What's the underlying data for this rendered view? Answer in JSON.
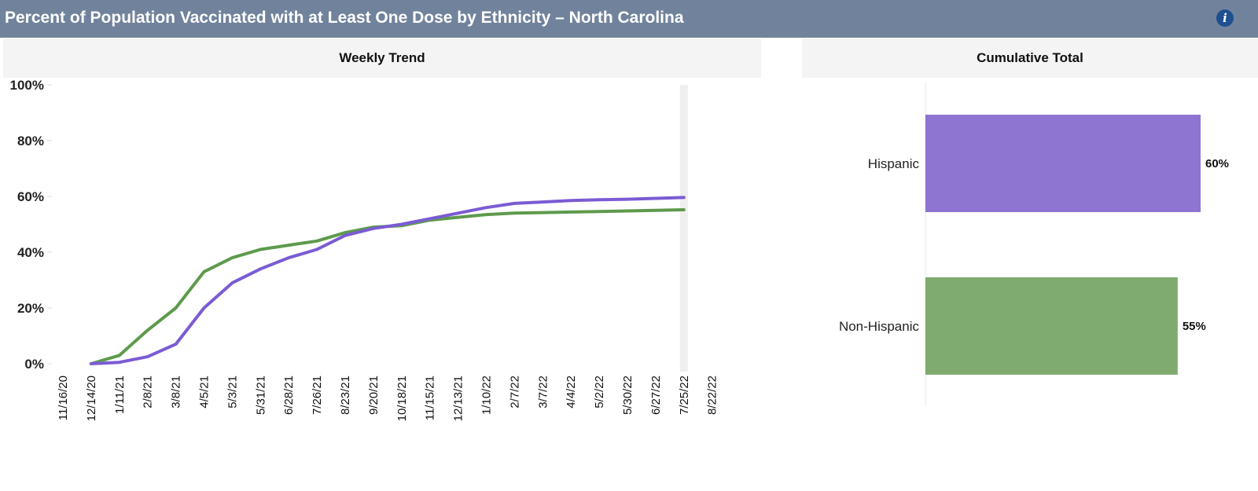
{
  "header": {
    "title": "Percent of Population Vaccinated with at Least One Dose by Ethnicity – North Carolina",
    "info_icon": "info-icon"
  },
  "panels": {
    "weekly_title": "Weekly Trend",
    "cumulative_title": "Cumulative Total"
  },
  "colors": {
    "hispanic": "#7b5bd4",
    "non_hispanic": "#5e9a4c",
    "hispanic_bar": "#8e75d1",
    "non_hispanic_bar": "#7fab6f",
    "header_bg": "#71839c"
  },
  "chart_data": [
    {
      "type": "line",
      "title": "Weekly Trend",
      "xlabel": "",
      "ylabel": "",
      "ylim": [
        0,
        100
      ],
      "yticks": [
        "0%",
        "20%",
        "40%",
        "60%",
        "80%",
        "100%"
      ],
      "ytick_values": [
        0,
        20,
        40,
        60,
        80,
        100
      ],
      "xticks": [
        "11/16/20",
        "12/14/20",
        "1/11/21",
        "2/8/21",
        "3/8/21",
        "4/5/21",
        "5/3/21",
        "5/31/21",
        "6/28/21",
        "7/26/21",
        "8/23/21",
        "9/20/21",
        "10/18/21",
        "11/15/21",
        "12/13/21",
        "1/10/22",
        "2/7/22",
        "3/7/22",
        "4/4/22",
        "5/2/22",
        "5/30/22",
        "6/27/22",
        "7/25/22",
        "8/22/22"
      ],
      "x": [
        "12/14/20",
        "1/11/21",
        "2/8/21",
        "3/8/21",
        "4/5/21",
        "5/3/21",
        "5/31/21",
        "6/28/21",
        "7/26/21",
        "8/23/21",
        "9/20/21",
        "10/18/21",
        "11/15/21",
        "12/13/21",
        "1/10/22",
        "2/7/22",
        "3/7/22",
        "4/4/22",
        "5/2/22",
        "5/30/22",
        "6/27/22",
        "7/25/22"
      ],
      "highlight_x": "7/25/22",
      "series": [
        {
          "name": "Hispanic",
          "values": [
            0,
            0.5,
            2.5,
            7,
            20,
            29,
            34,
            38,
            41,
            46,
            48.5,
            50,
            52,
            54,
            56,
            57.5,
            58,
            58.5,
            58.8,
            59,
            59.3,
            59.6
          ]
        },
        {
          "name": "Non-Hispanic",
          "values": [
            0,
            3,
            12,
            20,
            33,
            38,
            41,
            42.5,
            44,
            47,
            49,
            49.5,
            51.5,
            52.5,
            53.5,
            54,
            54.2,
            54.4,
            54.6,
            54.8,
            55,
            55.2
          ]
        }
      ]
    },
    {
      "type": "bar",
      "orientation": "horizontal",
      "title": "Cumulative Total",
      "categories": [
        "Hispanic",
        "Non-Hispanic"
      ],
      "values": [
        60,
        55
      ],
      "value_labels": [
        "60%",
        "55%"
      ],
      "xlim": [
        0,
        100
      ]
    }
  ]
}
